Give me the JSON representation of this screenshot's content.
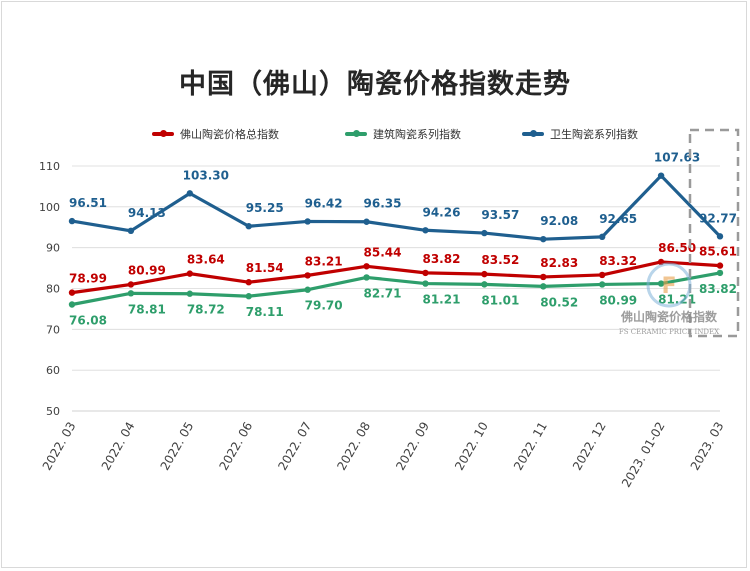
{
  "title": "中国（佛山）陶瓷价格指数走势",
  "watermark": {
    "line1": "佛山陶瓷价格指数",
    "line2": "FS CERAMIC PRICE INDEX"
  },
  "colors": {
    "composite": "#c00000",
    "building": "#2e9e6b",
    "sanitary": "#1f5f8f",
    "grid": "#d9d9d9",
    "axis_text": "#404040"
  },
  "chart_data": {
    "type": "line",
    "title": "中国（佛山）陶瓷价格指数走势",
    "categories": [
      "2022. 03",
      "2022. 04",
      "2022. 05",
      "2022. 06",
      "2022. 07",
      "2022. 08",
      "2022. 09",
      "2022. 10",
      "2022. 11",
      "2022. 12",
      "2023. 01-02",
      "2023. 03"
    ],
    "ylim": [
      50,
      110
    ],
    "yticks": [
      50,
      60,
      70,
      80,
      90,
      100,
      110
    ],
    "grid": true,
    "legend_position": "top",
    "series": [
      {
        "name": "佛山陶瓷价格总指数",
        "color": "#c00000",
        "values": [
          78.99,
          80.99,
          83.64,
          81.54,
          83.21,
          85.44,
          83.82,
          83.52,
          82.83,
          83.32,
          86.5,
          85.61
        ]
      },
      {
        "name": "建筑陶瓷系列指数",
        "color": "#2e9e6b",
        "values": [
          76.08,
          78.81,
          78.72,
          78.11,
          79.7,
          82.71,
          81.21,
          81.01,
          80.52,
          80.99,
          81.21,
          83.82
        ]
      },
      {
        "name": "卫生陶瓷系列指数",
        "color": "#1f5f8f",
        "values": [
          96.51,
          94.13,
          103.3,
          95.25,
          96.42,
          96.35,
          94.26,
          93.57,
          92.08,
          92.65,
          107.63,
          92.77
        ]
      }
    ]
  }
}
